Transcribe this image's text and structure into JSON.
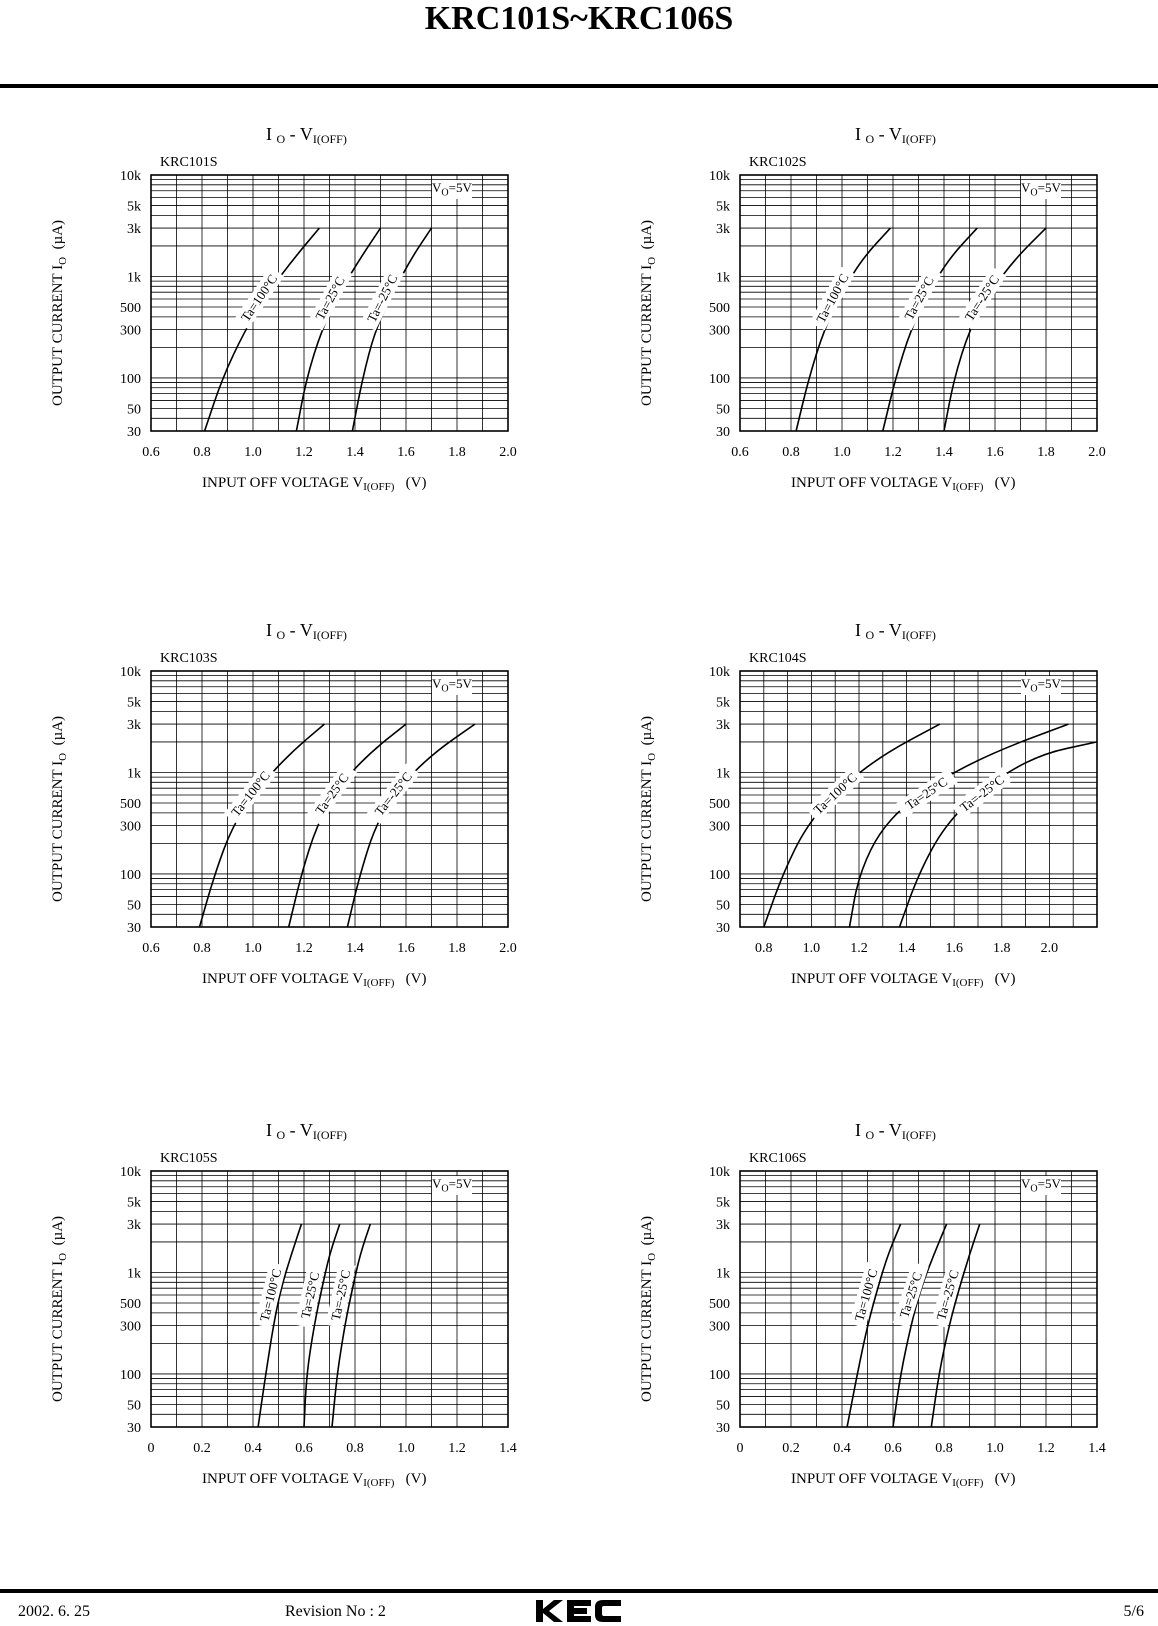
{
  "document": {
    "title": "KRC101S~KRC106S",
    "footer": {
      "date": "2002. 6. 25",
      "revision": "Revision No : 2",
      "brand": "KEC",
      "page": "5/6"
    }
  },
  "chart_data": [
    {
      "type": "line",
      "model": "KRC101S",
      "title": {
        "main": "I",
        "main_sub": "O",
        "sep": "-  V",
        "sep_sub": "I(OFF)"
      },
      "condition": {
        "text": "V",
        "sub": "O",
        "rest": "=5V"
      },
      "xlabel": {
        "text": "INPUT OFF VOLTAGE V",
        "sub": "I(OFF)",
        "unit": "(V)"
      },
      "ylabel": {
        "text": "OUTPUT CURRENT I",
        "sub": "O",
        "unit": "(µA)"
      },
      "x_scale": "linear",
      "y_scale": "log",
      "xlim": [
        0.6,
        2.0
      ],
      "ylim": [
        30,
        10000
      ],
      "x_ticks": [
        "0.6",
        "0.8",
        "1.0",
        "1.2",
        "1.4",
        "1.6",
        "1.8",
        "2.0"
      ],
      "y_ticks": [
        "10k",
        "5k",
        "3k",
        "1k",
        "500",
        "300",
        "100",
        "50",
        "30"
      ],
      "series": [
        {
          "name": "Ta=100°C",
          "points": [
            [
              0.81,
              30
            ],
            [
              0.88,
              100
            ],
            [
              0.97,
              300
            ],
            [
              1.06,
              700
            ],
            [
              1.16,
              1500
            ],
            [
              1.26,
              3000
            ]
          ]
        },
        {
          "name": "Ta=25°C",
          "points": [
            [
              1.17,
              30
            ],
            [
              1.21,
              100
            ],
            [
              1.27,
              300
            ],
            [
              1.34,
              700
            ],
            [
              1.42,
              1500
            ],
            [
              1.5,
              3000
            ]
          ]
        },
        {
          "name": "Ta=-25°C",
          "points": [
            [
              1.39,
              30
            ],
            [
              1.43,
              100
            ],
            [
              1.48,
              300
            ],
            [
              1.55,
              700
            ],
            [
              1.62,
              1500
            ],
            [
              1.7,
              3000
            ]
          ]
        }
      ]
    },
    {
      "type": "line",
      "model": "KRC102S",
      "title": {
        "main": "I",
        "main_sub": "O",
        "sep": "-  V",
        "sep_sub": "I(OFF)"
      },
      "condition": {
        "text": "V",
        "sub": "O",
        "rest": "=5V"
      },
      "xlabel": {
        "text": "INPUT OFF VOLTAGE V",
        "sub": "I(OFF)",
        "unit": "(V)"
      },
      "ylabel": {
        "text": "OUTPUT CURRENT I",
        "sub": "O",
        "unit": "(µA)"
      },
      "x_scale": "linear",
      "y_scale": "log",
      "xlim": [
        0.6,
        2.0
      ],
      "ylim": [
        30,
        10000
      ],
      "x_ticks": [
        "0.6",
        "0.8",
        "1.0",
        "1.2",
        "1.4",
        "1.6",
        "1.8",
        "2.0"
      ],
      "y_ticks": [
        "10k",
        "5k",
        "3k",
        "1k",
        "500",
        "300",
        "100",
        "50",
        "30"
      ],
      "series": [
        {
          "name": "Ta=100°C",
          "points": [
            [
              0.82,
              30
            ],
            [
              0.87,
              100
            ],
            [
              0.93,
              300
            ],
            [
              1.0,
              700
            ],
            [
              1.08,
              1500
            ],
            [
              1.19,
              3000
            ]
          ]
        },
        {
          "name": "Ta=25°C",
          "points": [
            [
              1.16,
              30
            ],
            [
              1.21,
              100
            ],
            [
              1.27,
              300
            ],
            [
              1.34,
              700
            ],
            [
              1.42,
              1500
            ],
            [
              1.53,
              3000
            ]
          ]
        },
        {
          "name": "Ta=-25°C",
          "points": [
            [
              1.4,
              30
            ],
            [
              1.44,
              100
            ],
            [
              1.5,
              300
            ],
            [
              1.58,
              700
            ],
            [
              1.68,
              1500
            ],
            [
              1.8,
              3000
            ]
          ]
        }
      ]
    },
    {
      "type": "line",
      "model": "KRC103S",
      "title": {
        "main": "I",
        "main_sub": "O",
        "sep": "-  V",
        "sep_sub": "I(OFF)"
      },
      "condition": {
        "text": "V",
        "sub": "O",
        "rest": "=5V"
      },
      "xlabel": {
        "text": "INPUT OFF VOLTAGE V",
        "sub": "I(OFF)",
        "unit": "(V)"
      },
      "ylabel": {
        "text": "OUTPUT CURRENT I",
        "sub": "O",
        "unit": "(µA)"
      },
      "x_scale": "linear",
      "y_scale": "log",
      "xlim": [
        0.6,
        2.0
      ],
      "ylim": [
        30,
        10000
      ],
      "x_ticks": [
        "0.6",
        "0.8",
        "1.0",
        "1.2",
        "1.4",
        "1.6",
        "1.8",
        "2.0"
      ],
      "y_ticks": [
        "10k",
        "5k",
        "3k",
        "1k",
        "500",
        "300",
        "100",
        "50",
        "30"
      ],
      "series": [
        {
          "name": "Ta=100°C",
          "points": [
            [
              0.79,
              30
            ],
            [
              0.85,
              100
            ],
            [
              0.92,
              300
            ],
            [
              1.02,
              700
            ],
            [
              1.14,
              1500
            ],
            [
              1.28,
              3000
            ]
          ]
        },
        {
          "name": "Ta=25°C",
          "points": [
            [
              1.14,
              30
            ],
            [
              1.19,
              100
            ],
            [
              1.25,
              300
            ],
            [
              1.33,
              700
            ],
            [
              1.45,
              1500
            ],
            [
              1.6,
              3000
            ]
          ]
        },
        {
          "name": "Ta=-25°C",
          "points": [
            [
              1.37,
              30
            ],
            [
              1.42,
              100
            ],
            [
              1.48,
              300
            ],
            [
              1.57,
              700
            ],
            [
              1.7,
              1500
            ],
            [
              1.87,
              3000
            ]
          ]
        }
      ]
    },
    {
      "type": "line",
      "model": "KRC104S",
      "title": {
        "main": "I",
        "main_sub": "O",
        "sep": "- V",
        "sep_sub": "I(OFF)"
      },
      "condition": {
        "text": "V",
        "sub": "O",
        "rest": "=5V"
      },
      "xlabel": {
        "text": "INPUT OFF VOLTAGE V",
        "sub": "I(OFF)",
        "unit": "(V)"
      },
      "ylabel": {
        "text": "OUTPUT CURRENT I",
        "sub": "O",
        "unit": "(µA)"
      },
      "x_scale": "linear",
      "y_scale": "log",
      "xlim": [
        0.7,
        2.2
      ],
      "ylim": [
        30,
        10000
      ],
      "x_ticks": [
        "0.8",
        "1.0",
        "1.2",
        "1.4",
        "1.6",
        "1.8",
        "2.0"
      ],
      "y_ticks": [
        "10k",
        "5k",
        "3k",
        "1k",
        "500",
        "300",
        "100",
        "50",
        "30"
      ],
      "series": [
        {
          "name": "Ta=100°C",
          "points": [
            [
              0.8,
              30
            ],
            [
              0.88,
              100
            ],
            [
              0.98,
              300
            ],
            [
              1.12,
              700
            ],
            [
              1.3,
              1500
            ],
            [
              1.54,
              3000
            ]
          ]
        },
        {
          "name": "Ta=25°C",
          "points": [
            [
              1.16,
              30
            ],
            [
              1.2,
              100
            ],
            [
              1.3,
              300
            ],
            [
              1.48,
              700
            ],
            [
              1.74,
              1500
            ],
            [
              2.08,
              3000
            ]
          ]
        },
        {
          "name": "Ta=-25°C",
          "points": [
            [
              1.37,
              30
            ],
            [
              1.45,
              100
            ],
            [
              1.56,
              300
            ],
            [
              1.72,
              700
            ],
            [
              1.95,
              1500
            ],
            [
              2.2,
              2000
            ]
          ]
        }
      ]
    },
    {
      "type": "line",
      "model": "KRC105S",
      "title": {
        "main": "I",
        "main_sub": "O",
        "sep": "- V",
        "sep_sub": "I(OFF)"
      },
      "condition": {
        "text": "V",
        "sub": "O",
        "rest": "=5V"
      },
      "xlabel": {
        "text": "INPUT OFF VOLTAGE V",
        "sub": "I(OFF)",
        "unit": "(V)"
      },
      "ylabel": {
        "text": "OUTPUT CURRENT I",
        "sub": "O",
        "unit": "(µA)"
      },
      "x_scale": "linear",
      "y_scale": "log",
      "xlim": [
        0,
        1.4
      ],
      "ylim": [
        30,
        10000
      ],
      "x_ticks": [
        "0",
        "0.2",
        "0.4",
        "0.6",
        "0.8",
        "1.0",
        "1.2",
        "1.4"
      ],
      "y_ticks": [
        "10k",
        "5k",
        "3k",
        "1k",
        "500",
        "300",
        "100",
        "50",
        "30"
      ],
      "series": [
        {
          "name": "Ta=100°C",
          "points": [
            [
              0.42,
              30
            ],
            [
              0.45,
              100
            ],
            [
              0.48,
              300
            ],
            [
              0.51,
              700
            ],
            [
              0.55,
              1500
            ],
            [
              0.59,
              3000
            ]
          ]
        },
        {
          "name": "Ta=25°C",
          "points": [
            [
              0.6,
              30
            ],
            [
              0.61,
              100
            ],
            [
              0.64,
              300
            ],
            [
              0.67,
              700
            ],
            [
              0.7,
              1500
            ],
            [
              0.74,
              3000
            ]
          ]
        },
        {
          "name": "Ta=-25°C",
          "points": [
            [
              0.71,
              30
            ],
            [
              0.73,
              100
            ],
            [
              0.76,
              300
            ],
            [
              0.79,
              700
            ],
            [
              0.82,
              1500
            ],
            [
              0.86,
              3000
            ]
          ]
        }
      ]
    },
    {
      "type": "line",
      "model": "KRC106S",
      "title": {
        "main": "I",
        "main_sub": "O",
        "sep": "- V",
        "sep_sub": "I(OFF)"
      },
      "condition": {
        "text": "V",
        "sub": "O",
        "rest": "=5V"
      },
      "xlabel": {
        "text": "INPUT OFF VOLTAGE V",
        "sub": "I(OFF)",
        "unit": "(V)"
      },
      "ylabel": {
        "text": "OUTPUT CURRENT I",
        "sub": "O",
        "unit": "(µA)"
      },
      "x_scale": "linear",
      "y_scale": "log",
      "xlim": [
        0,
        1.4
      ],
      "ylim": [
        30,
        10000
      ],
      "x_ticks": [
        "0",
        "0.2",
        "0.4",
        "0.6",
        "0.8",
        "1.0",
        "1.2",
        "1.4"
      ],
      "y_ticks": [
        "10k",
        "5k",
        "3k",
        "1k",
        "500",
        "300",
        "100",
        "50",
        "30"
      ],
      "series": [
        {
          "name": "Ta=100°C",
          "points": [
            [
              0.42,
              30
            ],
            [
              0.46,
              100
            ],
            [
              0.5,
              300
            ],
            [
              0.54,
              700
            ],
            [
              0.58,
              1500
            ],
            [
              0.63,
              3000
            ]
          ]
        },
        {
          "name": "Ta=25°C",
          "points": [
            [
              0.6,
              30
            ],
            [
              0.63,
              100
            ],
            [
              0.67,
              300
            ],
            [
              0.71,
              700
            ],
            [
              0.76,
              1500
            ],
            [
              0.81,
              3000
            ]
          ]
        },
        {
          "name": "Ta=-25°C",
          "points": [
            [
              0.75,
              30
            ],
            [
              0.78,
              100
            ],
            [
              0.82,
              300
            ],
            [
              0.86,
              700
            ],
            [
              0.9,
              1500
            ],
            [
              0.94,
              3000
            ]
          ]
        }
      ]
    }
  ]
}
